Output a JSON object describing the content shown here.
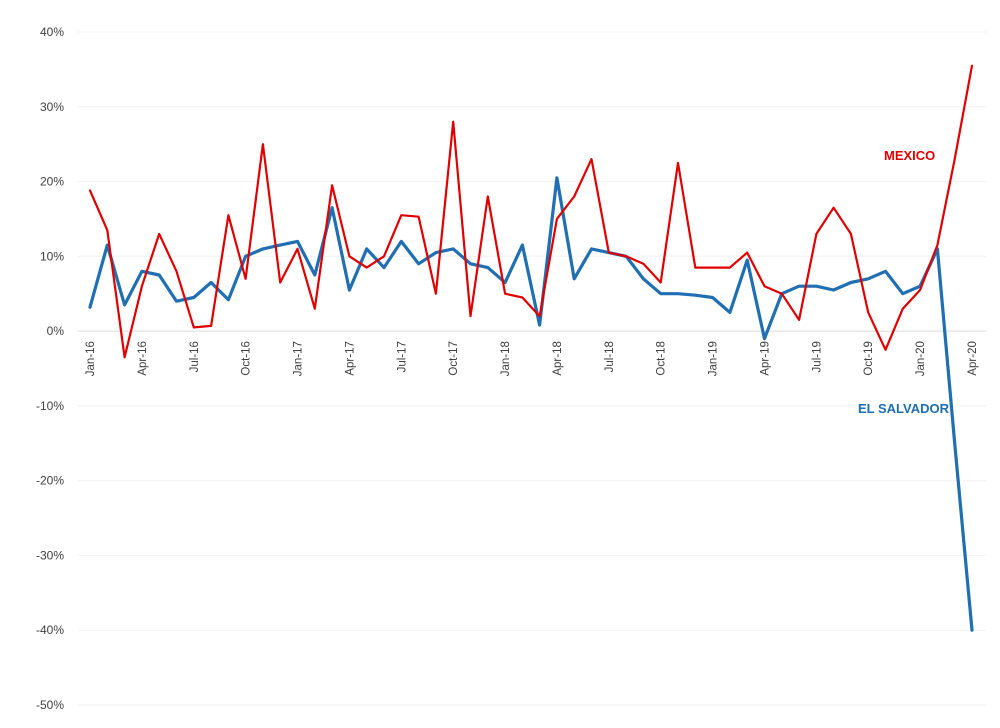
{
  "chart_data": {
    "type": "line",
    "title": "",
    "xlabel": "",
    "ylabel": "",
    "ylim": [
      -50,
      40
    ],
    "ytick_step": 10,
    "grid": "horizontal-faint",
    "legend_position": "inline-labels",
    "y_ticks": [
      {
        "value": 40,
        "label": "40%"
      },
      {
        "value": 30,
        "label": "30%"
      },
      {
        "value": 20,
        "label": "20%"
      },
      {
        "value": 10,
        "label": "10%"
      },
      {
        "value": 0,
        "label": "0%"
      },
      {
        "value": -10,
        "label": "-10%"
      },
      {
        "value": -20,
        "label": "-20%"
      },
      {
        "value": -30,
        "label": "-30%"
      },
      {
        "value": -40,
        "label": "-40%"
      },
      {
        "value": -50,
        "label": "-50%"
      }
    ],
    "x_tick_every": 3,
    "x_tick_labels": [
      "Jan-16",
      "Apr-16",
      "Jul-16",
      "Oct-16",
      "Jan-17",
      "Apr-17",
      "Jul-17",
      "Oct-17",
      "Jan-18",
      "Apr-18",
      "Jul-18",
      "Oct-18",
      "Jan-19",
      "Apr-19",
      "Jul-19",
      "Oct-19",
      "Jan-20",
      "Apr-20"
    ],
    "categories": [
      "Jan-16",
      "Feb-16",
      "Mar-16",
      "Apr-16",
      "May-16",
      "Jun-16",
      "Jul-16",
      "Aug-16",
      "Sep-16",
      "Oct-16",
      "Nov-16",
      "Dec-16",
      "Jan-17",
      "Feb-17",
      "Mar-17",
      "Apr-17",
      "May-17",
      "Jun-17",
      "Jul-17",
      "Aug-17",
      "Sep-17",
      "Oct-17",
      "Nov-17",
      "Dec-17",
      "Jan-18",
      "Feb-18",
      "Mar-18",
      "Apr-18",
      "May-18",
      "Jun-18",
      "Jul-18",
      "Aug-18",
      "Sep-18",
      "Oct-18",
      "Nov-18",
      "Dec-18",
      "Jan-19",
      "Feb-19",
      "Mar-19",
      "Apr-19",
      "May-19",
      "Jun-19",
      "Jul-19",
      "Aug-19",
      "Sep-19",
      "Oct-19",
      "Nov-19",
      "Dec-19",
      "Jan-20",
      "Feb-20",
      "Mar-20",
      "Apr-20"
    ],
    "series": [
      {
        "name": "EL SALVADOR",
        "color": "#1f6fb2",
        "width": 3.2,
        "values": [
          3.2,
          11.5,
          3.5,
          8,
          7.5,
          4,
          4.5,
          6.5,
          4.2,
          10,
          11,
          11.5,
          12,
          7.5,
          16.5,
          5.5,
          11,
          8.5,
          12,
          9,
          10.5,
          11,
          9,
          8.5,
          6.5,
          11.5,
          0.8,
          20.5,
          7,
          11,
          10.5,
          10,
          7,
          5,
          5,
          4.8,
          4.5,
          2.5,
          9.5,
          -1,
          5,
          6,
          6,
          5.5,
          6.5,
          7,
          8,
          5,
          6,
          11,
          -15,
          -40
        ]
      },
      {
        "name": "MEXICO",
        "color": "#e00000",
        "width": 2.2,
        "values": [
          18.8,
          13.5,
          -3.5,
          6,
          13,
          8,
          0.5,
          0.7,
          15.5,
          7,
          25,
          6.5,
          11,
          3,
          19.5,
          10,
          8.5,
          10,
          15.5,
          15.3,
          5,
          28,
          2,
          18,
          5,
          4.5,
          2,
          15,
          18,
          23,
          10.5,
          10,
          9,
          6.5,
          22.5,
          8.5,
          8.5,
          8.5,
          10.5,
          6,
          5,
          1.5,
          13,
          16.5,
          13,
          2.5,
          -2.5,
          3,
          5.5,
          11.5,
          23,
          35.5
        ]
      }
    ],
    "series_labels": {
      "mexico": "MEXICO",
      "el_salvador": "EL SALVADOR"
    }
  }
}
